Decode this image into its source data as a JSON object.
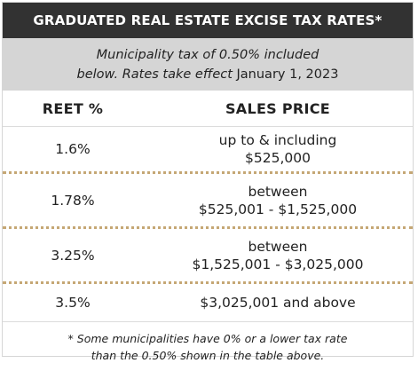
{
  "title": "GRADUATED REAL ESTATE EXCISE TAX RATES*",
  "subtitle": {
    "line1": "Municipality tax of 0.50% included",
    "line2_prefix": "below. Rates take effect",
    "line2_date": "January 1, 2023"
  },
  "headers": {
    "reet": "REET %",
    "price": "SALES PRICE"
  },
  "rows": [
    {
      "rate": "1.6%",
      "price_line1": "up to & including",
      "price_line2": "$525,000"
    },
    {
      "rate": "1.78%",
      "price_line1": "between",
      "price_line2": "$525,001 - $1,525,000"
    },
    {
      "rate": "3.25%",
      "price_line1": "between",
      "price_line2": "$1,525,001 - $3,025,000"
    },
    {
      "rate": "3.5%",
      "price_line1": "$3,025,001 and above",
      "price_line2": ""
    }
  ],
  "footnote": {
    "line1": "* Some municipalities have 0% or a lower tax rate",
    "line2": "than the 0.50% shown in the table above."
  },
  "colors": {
    "title_bg": "#323232",
    "subtitle_bg": "#d5d5d5",
    "dotted_divider": "#c5a774"
  }
}
